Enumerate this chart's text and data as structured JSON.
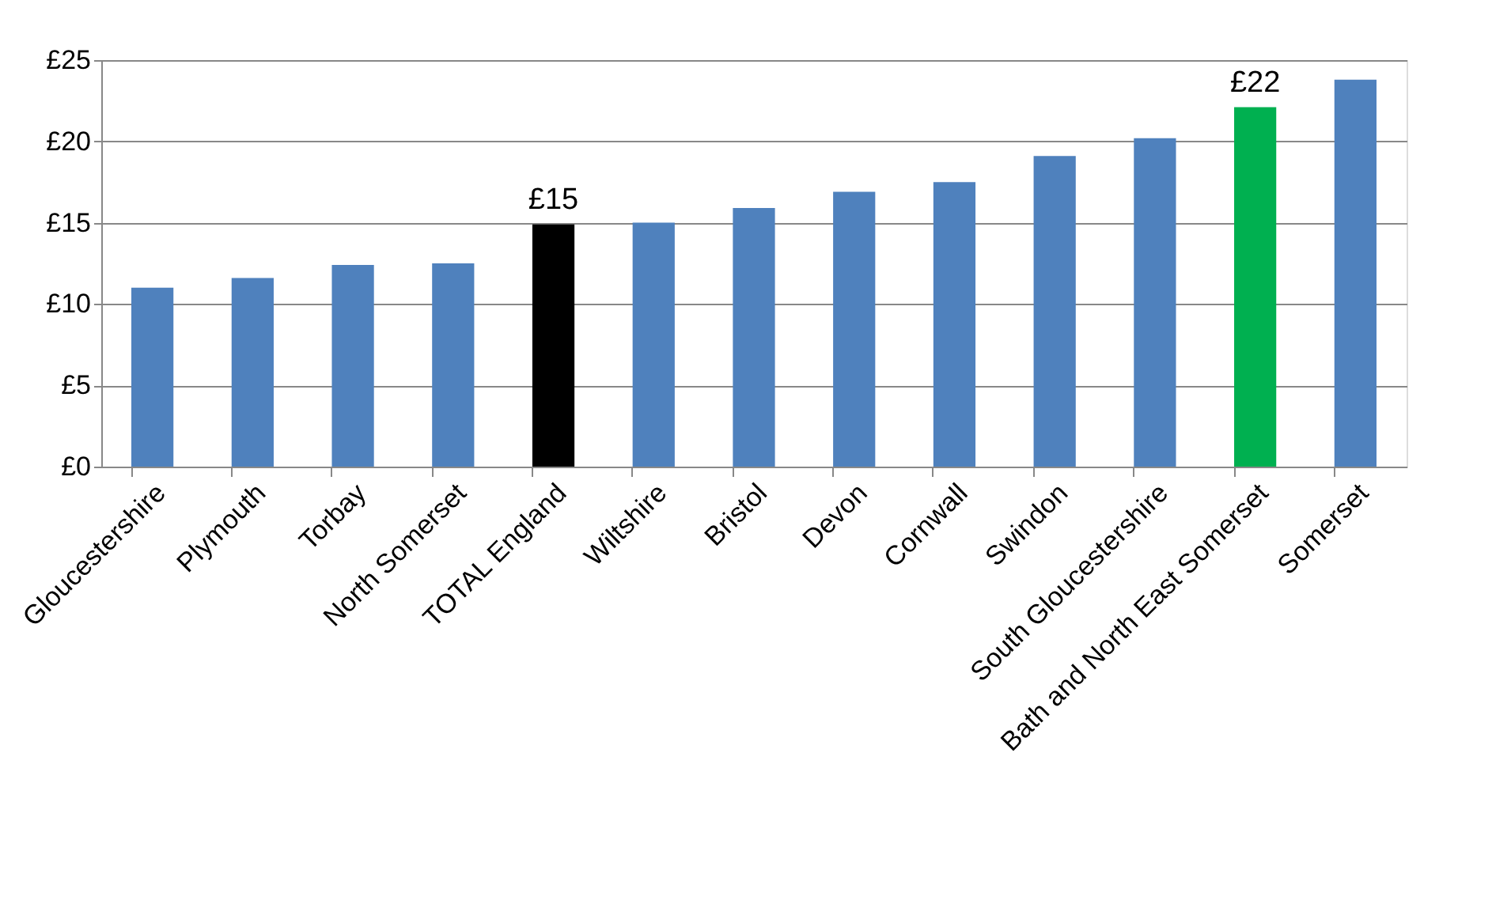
{
  "chart_data": {
    "type": "bar",
    "categories": [
      "Gloucestershire",
      "Plymouth",
      "Torbay",
      "North Somerset",
      "TOTAL England",
      "Wiltshire",
      "Bristol",
      "Devon",
      "Cornwall",
      "Swindon",
      "South Gloucestershire",
      "Bath and North East Somerset",
      "Somerset"
    ],
    "values": [
      11.0,
      11.6,
      12.4,
      12.5,
      14.9,
      15.0,
      15.9,
      16.9,
      17.5,
      19.1,
      20.2,
      22.1,
      23.8
    ],
    "colors": [
      "#4f81bd",
      "#4f81bd",
      "#4f81bd",
      "#4f81bd",
      "#000000",
      "#4f81bd",
      "#4f81bd",
      "#4f81bd",
      "#4f81bd",
      "#4f81bd",
      "#4f81bd",
      "#00b050",
      "#4f81bd"
    ],
    "value_labels": [
      null,
      null,
      null,
      null,
      "£15",
      null,
      null,
      null,
      null,
      null,
      null,
      "£22",
      null
    ],
    "ylim": [
      0,
      25
    ],
    "yticks": [
      {
        "value": 0,
        "label": "£0"
      },
      {
        "value": 5,
        "label": "£5"
      },
      {
        "value": 10,
        "label": "£10"
      },
      {
        "value": 15,
        "label": "£15"
      },
      {
        "value": 20,
        "label": "£20"
      },
      {
        "value": 25,
        "label": "£25"
      }
    ],
    "grid": "y"
  }
}
